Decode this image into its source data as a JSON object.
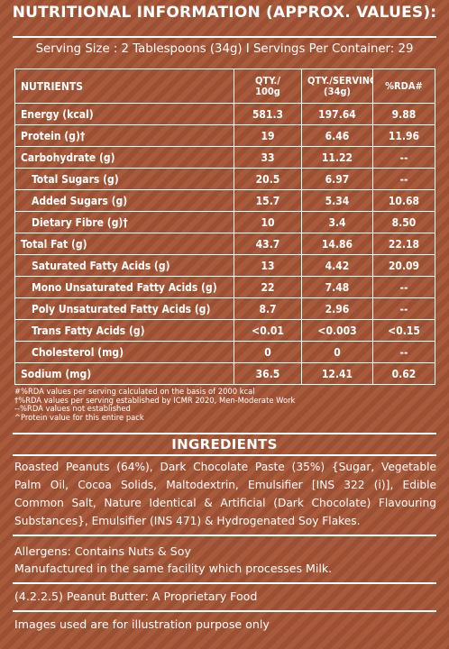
{
  "title": "NUTRITIONAL INFORMATION (APPROX. VALUES):",
  "serving_line": "Serving Size : 2 Tablespoons (34g) I Servings Per Container: 29",
  "table": {
    "headers": {
      "nutrients": "NUTRIENTS",
      "qty100_line1": "QTY./",
      "qty100_line2": "100g",
      "qtyserv_line1": "QTY./SERVING",
      "qtyserv_line2": "(34g)",
      "rda": "%RDA#"
    },
    "rows": [
      {
        "name": "Energy (kcal)",
        "per100": "581.3",
        "perServing": "197.64",
        "rda": "9.88",
        "indent": false
      },
      {
        "name": "Protein (g)†",
        "per100": "19",
        "perServing": "6.46",
        "rda": "11.96",
        "indent": false
      },
      {
        "name": "Carbohydrate (g)",
        "per100": "33",
        "perServing": "11.22",
        "rda": "--",
        "indent": false
      },
      {
        "name": "Total Sugars (g)",
        "per100": "20.5",
        "perServing": "6.97",
        "rda": "--",
        "indent": true
      },
      {
        "name": "Added Sugars (g)",
        "per100": "15.7",
        "perServing": "5.34",
        "rda": "10.68",
        "indent": true
      },
      {
        "name": "Dietary Fibre (g)†",
        "per100": "10",
        "perServing": "3.4",
        "rda": "8.50",
        "indent": true
      },
      {
        "name": "Total Fat (g)",
        "per100": "43.7",
        "perServing": "14.86",
        "rda": "22.18",
        "indent": false
      },
      {
        "name": "Saturated Fatty Acids (g)",
        "per100": "13",
        "perServing": "4.42",
        "rda": "20.09",
        "indent": true
      },
      {
        "name": "Mono Unsaturated Fatty Acids (g)",
        "per100": "22",
        "perServing": "7.48",
        "rda": "--",
        "indent": true
      },
      {
        "name": "Poly Unsaturated Fatty Acids (g)",
        "per100": "8.7",
        "perServing": "2.96",
        "rda": "--",
        "indent": true
      },
      {
        "name": "Trans Fatty Acids (g)",
        "per100": "<0.01",
        "perServing": "<0.003",
        "rda": "<0.15",
        "indent": true
      },
      {
        "name": "Cholesterol (mg)",
        "per100": "0",
        "perServing": "0",
        "rda": "--",
        "indent": true
      },
      {
        "name": "Sodium (mg)",
        "per100": "36.5",
        "perServing": "12.41",
        "rda": "0.62",
        "indent": false
      }
    ]
  },
  "footnotes": [
    "#%RDA values per serving calculated on the basis of 2000 kcal",
    "†%RDA values per serving established by ICMR 2020, Men-Moderate Work",
    "--%RDA values not established",
    "^Protein value for this entire pack"
  ],
  "ingredients_heading": "INGREDIENTS",
  "ingredients_text": "Roasted Peanuts (64%), Dark Chocolate Paste (35%) {Sugar, Vegetable Palm Oil, Cocoa Solids, Maltodextrin, Emulsifier [INS 322 (i)], Edible Common Salt, Nature Identical & Artificial (Dark Chocolate) Flavouring Substances}, Emulsifier (INS 471) & Hydrogenated Soy Flakes.",
  "allergens": "Allergens: Contains Nuts & Soy",
  "facility": "Manufactured in the same facility which processes Milk.",
  "proprietary": "(4.2.2.5) Peanut Butter: A Proprietary Food",
  "disclaimer": "Images used are for illustration purpose only",
  "colors": {
    "background": "#a5573a",
    "stripe": "#9c5033",
    "text": "#ffffff"
  }
}
